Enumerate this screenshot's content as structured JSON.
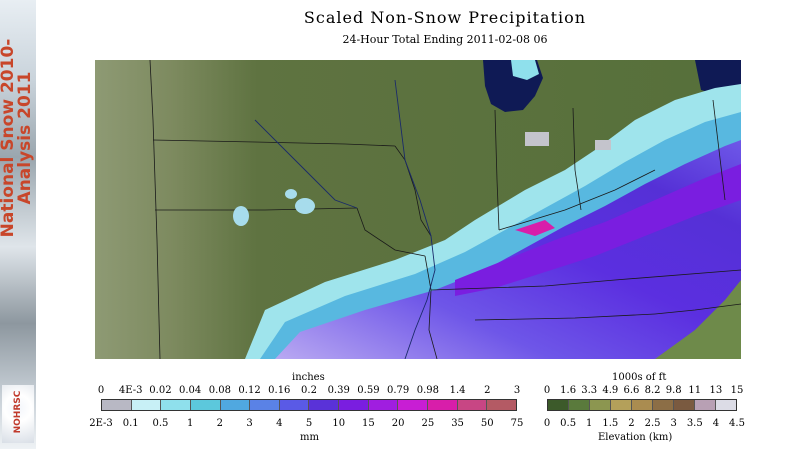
{
  "sidebar": {
    "banner_line1": "National Snow 2010-",
    "banner_line2": "Analysis 2011",
    "logo_text": "NOHRSC"
  },
  "header": {
    "title": "Scaled Non-Snow Precipitation",
    "subtitle": "24-Hour Total Ending 2011-02-08 06"
  },
  "precip_scale": {
    "top_unit": "inches",
    "bottom_unit": "mm",
    "top_ticks": [
      "0",
      "4E-3",
      "0.02",
      "0.04",
      "0.08",
      "0.12",
      "0.16",
      "0.2",
      "0.39",
      "0.59",
      "0.79",
      "0.98",
      "1.4",
      "2",
      "3"
    ],
    "bottom_ticks": [
      "2E-3",
      "0.1",
      "0.5",
      "1",
      "2",
      "3",
      "4",
      "5",
      "10",
      "15",
      "20",
      "25",
      "35",
      "50",
      "75"
    ],
    "colors": [
      "#b8b8c4",
      "#c8f0f6",
      "#8fe0ec",
      "#5cc8dc",
      "#50a8e0",
      "#5a82e6",
      "#5a5ae6",
      "#5a32d8",
      "#7a1ee0",
      "#a01ee0",
      "#c81ed4",
      "#d81eaa",
      "#c84684",
      "#b45a64"
    ]
  },
  "elevation_scale": {
    "top_unit": "1000s of ft",
    "bottom_unit": "Elevation (km)",
    "top_ticks": [
      "0",
      "1.6",
      "3.3",
      "4.9",
      "6.6",
      "8.2",
      "9.8",
      "11",
      "13",
      "15"
    ],
    "bottom_ticks": [
      "0",
      "0.5",
      "1",
      "1.5",
      "2",
      "2.5",
      "3",
      "3.5",
      "4",
      "4.5"
    ],
    "colors": [
      "#3c5a2a",
      "#5a7a3c",
      "#8c9650",
      "#b4a05a",
      "#aa8c50",
      "#8c6e46",
      "#7a5a40",
      "#b8a0b4",
      "#dcdce6"
    ]
  }
}
